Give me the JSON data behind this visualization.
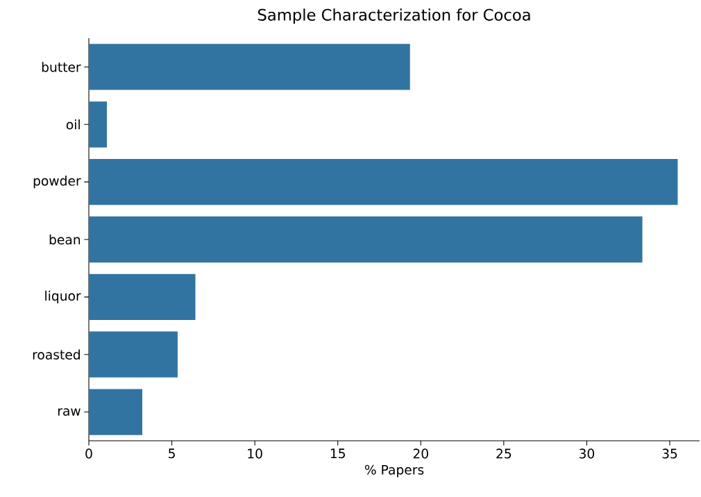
{
  "chart_data": {
    "type": "bar",
    "orientation": "horizontal",
    "title": "Sample Characterization for Cocoa",
    "xlabel": "% Papers",
    "categories": [
      "butter",
      "oil",
      "powder",
      "bean",
      "liquor",
      "roasted",
      "raw"
    ],
    "values": [
      19.35,
      1.09,
      35.48,
      33.35,
      6.42,
      5.35,
      3.22
    ],
    "color": "#3274a1",
    "xlim": [
      0,
      36.8
    ],
    "xticks": [
      0,
      5,
      10,
      15,
      20,
      25,
      30,
      35
    ],
    "grid": false
  }
}
